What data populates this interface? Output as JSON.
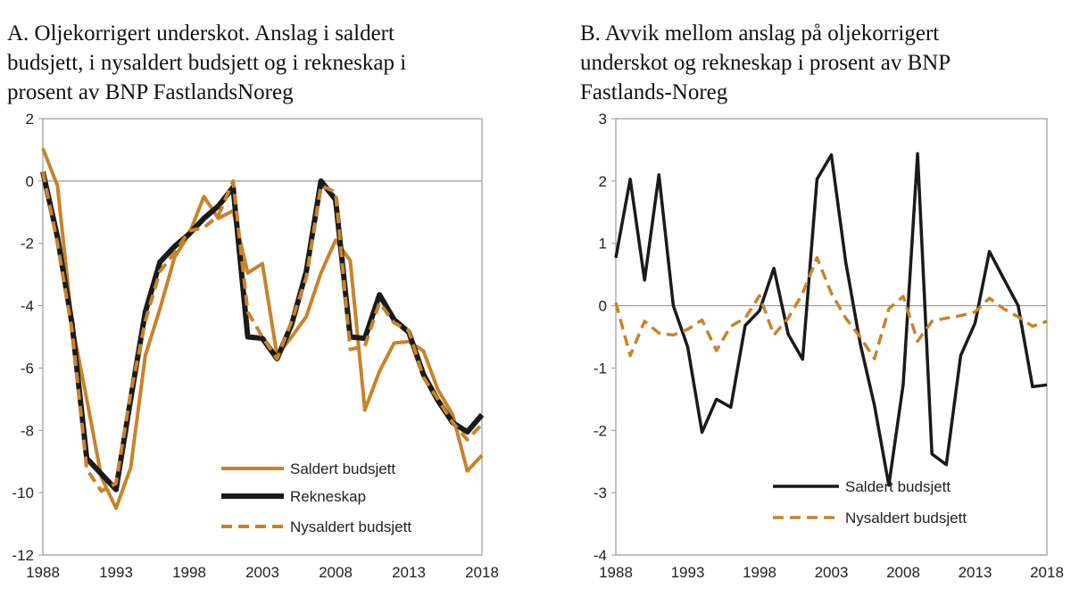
{
  "colors": {
    "orange": "#c8832a",
    "black": "#1a1a1a",
    "axis": "#9a9a9a"
  },
  "chart_data": [
    {
      "type": "line",
      "title_lines": [
        "A.  Oljekorrigert underskot. Anslag i saldert",
        "budsjett, i nysaldert budsjett og i rekneskap i",
        "prosent av BNP FastlandsNoreg"
      ],
      "x": [
        1988,
        1989,
        1990,
        1991,
        1992,
        1993,
        1994,
        1995,
        1996,
        1997,
        1998,
        1999,
        2000,
        2001,
        2002,
        2003,
        2004,
        2005,
        2006,
        2007,
        2008,
        2009,
        2010,
        2011,
        2012,
        2013,
        2014,
        2015,
        2016,
        2017,
        2018
      ],
      "xticks": [
        "1988",
        "1993",
        "1998",
        "2003",
        "2008",
        "2013",
        "2018"
      ],
      "yticks": [
        "2",
        "0",
        "-2",
        "-4",
        "-6",
        "-8",
        "-10",
        "-12"
      ],
      "ylim": [
        -12,
        2
      ],
      "legend": "bottom-right",
      "series": [
        {
          "name": "Saldert budsjett",
          "color": "#c8832a",
          "style": "solid",
          "values": [
            1.05,
            -0.15,
            -4.6,
            -7.0,
            -9.5,
            -10.5,
            -9.2,
            -5.6,
            -4.1,
            -2.45,
            -1.7,
            -0.5,
            -1.2,
            -0.95,
            -2.95,
            -2.65,
            -5.6,
            -5.0,
            -4.35,
            -2.95,
            -1.9,
            -2.55,
            -7.35,
            -6.1,
            -5.2,
            -5.15,
            -5.45,
            -6.7,
            -7.5,
            -9.3,
            -8.8
          ]
        },
        {
          "name": "Rekneskap",
          "color": "#1a1a1a",
          "style": "thick",
          "values": [
            0.3,
            -1.8,
            -4.6,
            -8.9,
            -9.4,
            -9.9,
            -7.0,
            -4.2,
            -2.6,
            -2.1,
            -1.7,
            -1.2,
            -0.8,
            -0.2,
            -5.0,
            -5.05,
            -5.7,
            -4.6,
            -2.9,
            0.0,
            -0.6,
            -5.0,
            -5.05,
            -3.65,
            -4.45,
            -4.85,
            -6.2,
            -7.05,
            -7.75,
            -8.05,
            -7.5
          ]
        },
        {
          "name": "Nysaldert budsjett",
          "color": "#c8832a",
          "style": "dashed",
          "values": [
            0.3,
            -2.0,
            -4.8,
            -9.25,
            -9.95,
            -9.7,
            -6.8,
            -4.5,
            -2.9,
            -2.3,
            -1.6,
            -1.5,
            -1.1,
            0.0,
            -4.2,
            -5.0,
            -5.7,
            -4.5,
            -3.1,
            -0.15,
            -0.35,
            -5.4,
            -5.3,
            -3.9,
            -4.55,
            -4.8,
            -6.3,
            -7.0,
            -7.75,
            -8.3,
            -7.8
          ]
        }
      ]
    },
    {
      "type": "line",
      "title_lines": [
        "B.  Avvik mellom anslag på oljekorrigert",
        "underskot og rekneskap i prosent av BNP",
        "Fastlands-Noreg"
      ],
      "x": [
        1988,
        1989,
        1990,
        1991,
        1992,
        1993,
        1994,
        1995,
        1996,
        1997,
        1998,
        1999,
        2000,
        2001,
        2002,
        2003,
        2004,
        2005,
        2006,
        2007,
        2008,
        2009,
        2010,
        2011,
        2012,
        2013,
        2014,
        2015,
        2016,
        2017,
        2018
      ],
      "xticks": [
        "1988",
        "1993",
        "1998",
        "2003",
        "2008",
        "2013",
        "2018"
      ],
      "yticks": [
        "3",
        "2",
        "1",
        "0",
        "-1",
        "-2",
        "-3",
        "-4"
      ],
      "ylim": [
        -4,
        3
      ],
      "legend": "bottom-center",
      "series": [
        {
          "name": "Saldert budsjett",
          "color": "#1a1a1a",
          "style": "solid",
          "values": [
            0.77,
            2.03,
            0.41,
            2.1,
            0.0,
            -0.66,
            -2.03,
            -1.5,
            -1.63,
            -0.32,
            -0.08,
            0.6,
            -0.46,
            -0.86,
            2.03,
            2.42,
            0.7,
            -0.6,
            -1.6,
            -2.88,
            -1.26,
            2.44,
            -2.38,
            -2.55,
            -0.8,
            -0.28,
            0.87,
            0.43,
            0.0,
            -1.3,
            -1.27
          ]
        },
        {
          "name": "Nysaldert budsjett",
          "color": "#c8832a",
          "style": "dashed",
          "values": [
            0.05,
            -0.8,
            -0.25,
            -0.44,
            -0.47,
            -0.38,
            -0.23,
            -0.72,
            -0.33,
            -0.2,
            0.16,
            -0.47,
            -0.2,
            0.2,
            0.77,
            0.2,
            -0.2,
            -0.5,
            -0.85,
            -0.05,
            0.15,
            -0.57,
            -0.25,
            -0.2,
            -0.16,
            -0.1,
            0.12,
            -0.05,
            -0.18,
            -0.33,
            -0.25
          ]
        }
      ]
    }
  ]
}
